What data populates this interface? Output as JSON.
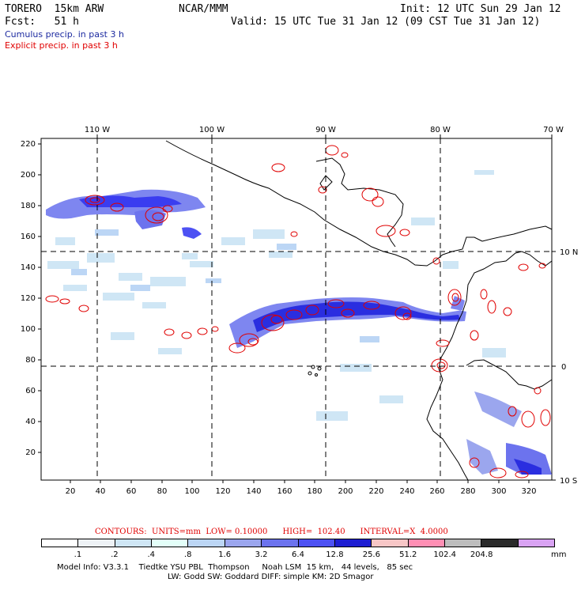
{
  "header": {
    "model": "TORERO  15km ARW",
    "org": "NCAR/MMM",
    "init": "Init: 12 UTC Sun 29 Jan 12",
    "fcst": "Fcst:   51 h",
    "valid": "Valid: 15 UTC Tue 31 Jan 12 (09 CST Tue 31 Jan 12)",
    "legend_cumulus": "Cumulus precip. in past 3 h",
    "legend_explicit": "Explicit precip. in past 3 h"
  },
  "map": {
    "top_lon_labels": [
      "110 W",
      "100 W",
      "90 W",
      "80 W",
      "70 W"
    ],
    "right_lat_labels": [
      "10 N",
      "0",
      "10 S"
    ],
    "left_y_labels": [
      "220",
      "200",
      "180",
      "160",
      "140",
      "120",
      "100",
      "80",
      "60",
      "40",
      "20"
    ],
    "bottom_x_labels": [
      "20",
      "40",
      "60",
      "80",
      "100",
      "120",
      "140",
      "160",
      "180",
      "200",
      "220",
      "240",
      "260",
      "280",
      "300",
      "320"
    ]
  },
  "contour_info": "CONTOURS:  UNITS=mm  LOW= 0.10000      HIGH=  102.40      INTERVAL=X  4.0000",
  "colorbar": {
    "colors": [
      "#ffffff",
      "#eef2f6",
      "#cfe6f5",
      "#e3fff9",
      "#bcd6f5",
      "#9ba6ee",
      "#6c73ee",
      "#4d51f3",
      "#1e1ed2",
      "#f7c6c6",
      "#ff8fb4",
      "#bdbdbd",
      "#2a2a2a",
      "#d9a3f3"
    ],
    "labels": [
      ".1",
      ".2",
      ".4",
      ".8",
      "1.6",
      "3.2",
      "6.4",
      "12.8",
      "25.6",
      "51.2",
      "102.4",
      "204.8"
    ],
    "units": "mm"
  },
  "footer": {
    "line1": "Model Info: V3.3.1    Tiedtke YSU PBL  Thompson     Noah LSM  15 km,   44 levels,   85 sec",
    "line2": "LW: Godd SW: Goddard DIFF: simple KM: 2D Smagor"
  }
}
